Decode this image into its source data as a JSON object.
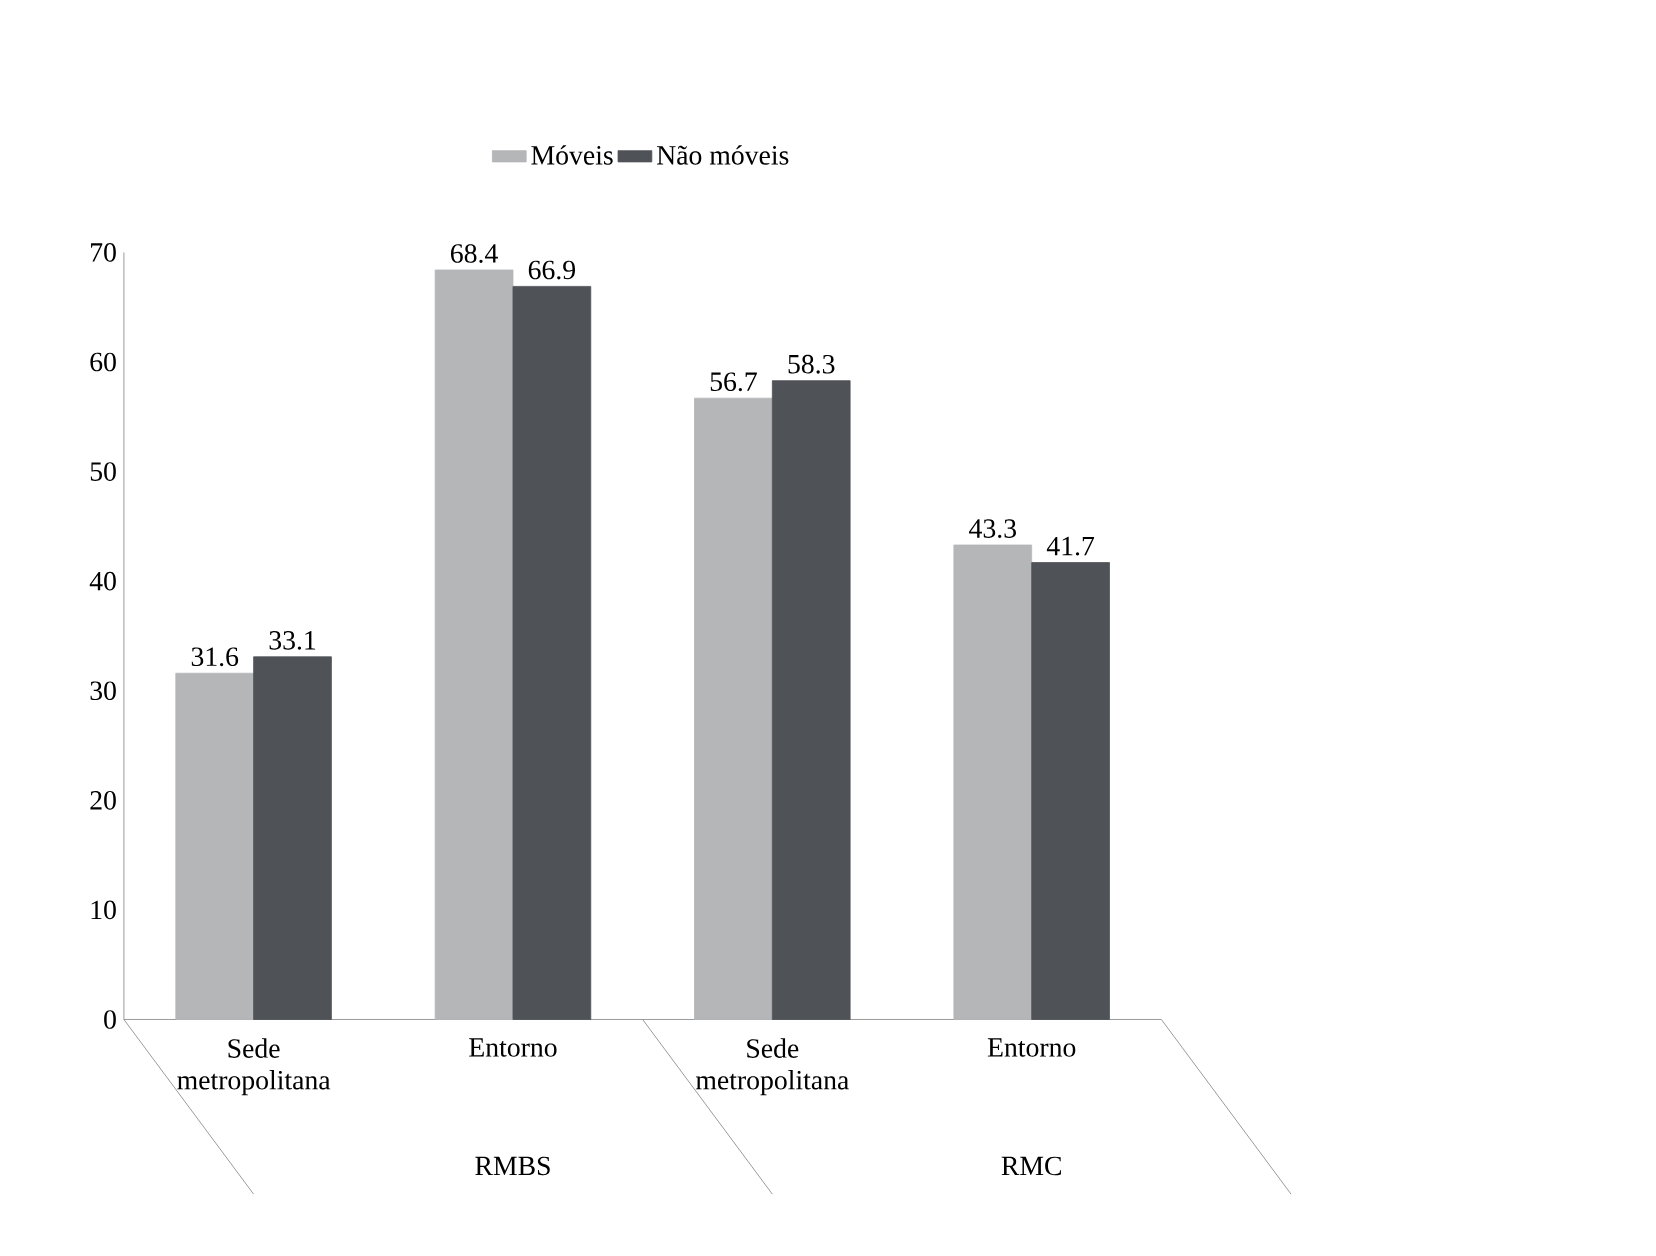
{
  "chart_data": {
    "type": "bar",
    "categories": [
      "Sede metropolitana",
      "Entorno",
      "Sede metropolitana",
      "Entorno"
    ],
    "series": [
      {
        "name": "Móveis",
        "color": "#b4b6b8",
        "values": [
          31.6,
          68.4,
          56.7,
          43.3
        ]
      },
      {
        "name": "Não móveis",
        "color": "#4f5357",
        "values": [
          33.1,
          66.9,
          58.3,
          41.7
        ]
      }
    ],
    "ylim": [
      0,
      70
    ],
    "yticks": [
      0,
      10,
      20,
      30,
      40,
      50,
      60,
      70
    ],
    "grid": false,
    "legend": "top",
    "data_labels": true,
    "annotations": [
      "RMBS",
      "RMC"
    ]
  }
}
